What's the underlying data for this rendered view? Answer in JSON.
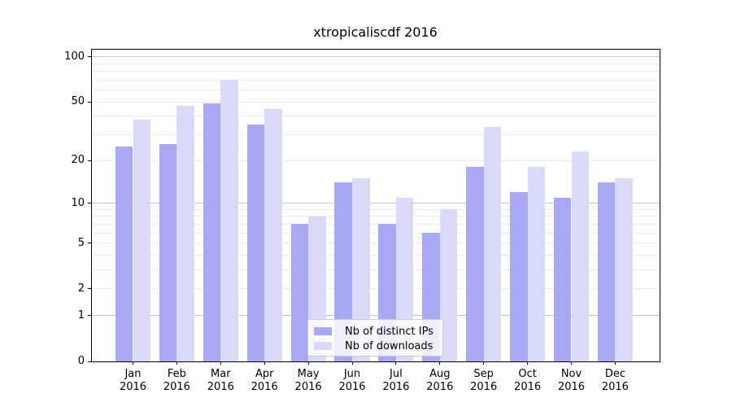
{
  "chart_data": {
    "type": "bar",
    "title": "xtropicaliscdf 2016",
    "categories": [
      "Jan",
      "Feb",
      "Mar",
      "Apr",
      "May",
      "Jun",
      "Jul",
      "Aug",
      "Sep",
      "Oct",
      "Nov",
      "Dec"
    ],
    "category_year": "2016",
    "series": [
      {
        "name": "Nb of distinct IPs",
        "color": "#a8a8f5",
        "values": [
          25,
          26,
          49,
          35,
          7,
          14,
          7,
          6,
          18,
          12,
          11,
          14
        ]
      },
      {
        "name": "Nb of downloads",
        "color": "#d9d9f8",
        "values": [
          38,
          47,
          70,
          45,
          8,
          15,
          11,
          9,
          34,
          18,
          23,
          15
        ]
      }
    ],
    "xlabel": "",
    "ylabel": "",
    "y_scale": "log1p",
    "ylim": [
      0,
      113
    ],
    "yticks": [
      0,
      1,
      2,
      5,
      10,
      20,
      50,
      100
    ],
    "y_major_gridlines": [
      1,
      10,
      100
    ],
    "y_minor_gridlines": [
      2,
      3,
      4,
      5,
      6,
      7,
      8,
      9,
      20,
      30,
      40,
      50,
      60,
      70,
      80,
      90
    ],
    "grid": true,
    "legend_position": "lower-center-inside",
    "colors": {
      "major_grid": "#c3c3c3",
      "minor_grid": "#eaeaea",
      "axis_line": "#000000",
      "text": "#000000",
      "legend_border": "#cccccc"
    }
  }
}
